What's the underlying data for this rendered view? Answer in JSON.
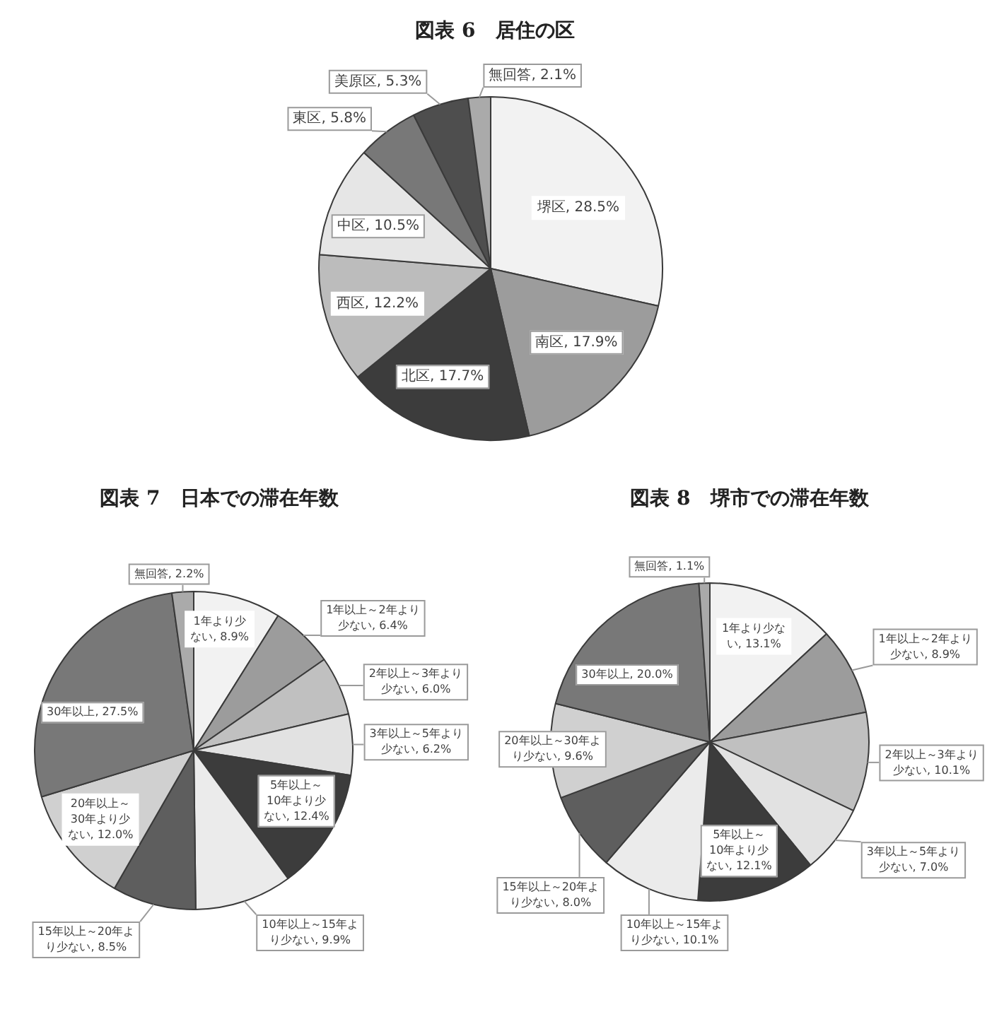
{
  "chart_data": [
    {
      "type": "pie",
      "title": "図表 6　居住の区",
      "categories": [
        "堺区",
        "南区",
        "北区",
        "西区",
        "中区",
        "東区",
        "美原区",
        "無回答"
      ],
      "values": [
        28.5,
        17.9,
        17.7,
        12.2,
        10.5,
        5.8,
        5.3,
        2.1
      ],
      "value_labels": [
        "28.5%",
        "17.9%",
        "17.7%",
        "12.2%",
        "10.5%",
        "5.8%",
        "5.3%",
        "2.1%"
      ],
      "colors": [
        "#f2f2f2",
        "#9c9c9c",
        "#3c3c3c",
        "#bcbcbc",
        "#e6e6e6",
        "#787878",
        "#4e4e4e",
        "#aaaaaa"
      ]
    },
    {
      "type": "pie",
      "title": "図表 7　日本での滞在年数",
      "categories": [
        "1年より少ない",
        "1年以上～2年より少ない",
        "2年以上～3年より少ない",
        "3年以上～5年より少ない",
        "5年以上～10年より少ない",
        "10年以上～15年より少ない",
        "15年以上～20年より少ない",
        "20年以上～30年より少ない",
        "30年以上",
        "無回答"
      ],
      "values": [
        8.9,
        6.4,
        6.0,
        6.2,
        12.4,
        9.9,
        8.5,
        12.0,
        27.5,
        2.2
      ],
      "value_labels": [
        "8.9%",
        "6.4%",
        "6.0%",
        "6.2%",
        "12.4%",
        "9.9%",
        "8.5%",
        "12.0%",
        "27.5%",
        "2.2%"
      ],
      "colors": [
        "#f2f2f2",
        "#9c9c9c",
        "#c0c0c0",
        "#e2e2e2",
        "#3c3c3c",
        "#ebebeb",
        "#5e5e5e",
        "#d0d0d0",
        "#787878",
        "#aaaaaa"
      ]
    },
    {
      "type": "pie",
      "title": "図表 8　堺市での滞在年数",
      "categories": [
        "1年より少ない",
        "1年以上～2年より少ない",
        "2年以上～3年より少ない",
        "3年以上～5年より少ない",
        "5年以上～10年より少ない",
        "10年以上～15年より少ない",
        "15年以上～20年より少ない",
        "20年以上～30年より少ない",
        "30年以上",
        "無回答"
      ],
      "values": [
        13.1,
        8.9,
        10.1,
        7.0,
        12.1,
        10.1,
        8.0,
        9.6,
        20.0,
        1.1
      ],
      "value_labels": [
        "13.1%",
        "8.9%",
        "10.1%",
        "7.0%",
        "12.1%",
        "10.1%",
        "8.0%",
        "9.6%",
        "20.0%",
        "1.1%"
      ],
      "colors": [
        "#f2f2f2",
        "#9c9c9c",
        "#c0c0c0",
        "#e2e2e2",
        "#3c3c3c",
        "#ebebeb",
        "#5e5e5e",
        "#d0d0d0",
        "#787878",
        "#aaaaaa"
      ]
    }
  ]
}
